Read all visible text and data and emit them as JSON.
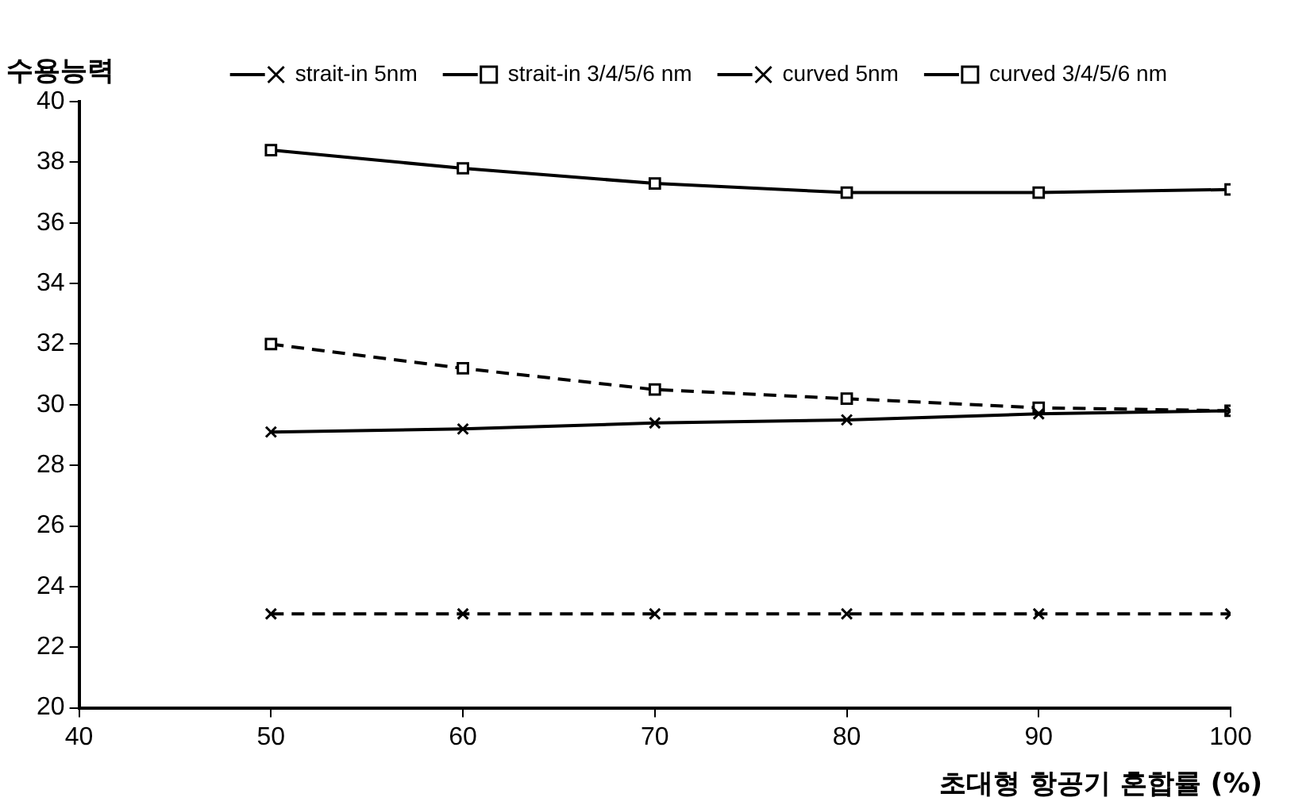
{
  "chart_data": {
    "type": "line",
    "xlabel": "초대형 항공기 혼합률 (%)",
    "ylabel": "수용능력",
    "x": [
      50,
      60,
      70,
      80,
      90,
      100
    ],
    "xlim": [
      40,
      100
    ],
    "xticks": [
      40,
      50,
      60,
      70,
      80,
      90,
      100
    ],
    "ylim": [
      20,
      40
    ],
    "yticks": [
      20,
      22,
      24,
      26,
      28,
      30,
      32,
      34,
      36,
      38,
      40
    ],
    "grid": false,
    "legend": "top",
    "series": [
      {
        "name": "strait-in 5nm",
        "color": "#000000",
        "marker": "cross",
        "line_style": "solid",
        "values": [
          29.1,
          29.2,
          29.4,
          29.5,
          29.7,
          29.8
        ]
      },
      {
        "name": "strait-in 3/4/5/6 nm",
        "color": "#000000",
        "marker": "square",
        "line_style": "solid",
        "values": [
          38.4,
          37.8,
          37.3,
          37.0,
          37.0,
          37.1
        ]
      },
      {
        "name": "curved 5nm",
        "color": "#000000",
        "marker": "cross",
        "line_style": "dashed",
        "values": [
          23.1,
          23.1,
          23.1,
          23.1,
          23.1,
          23.1
        ]
      },
      {
        "name": "curved 3/4/5/6 nm",
        "color": "#000000",
        "marker": "square",
        "line_style": "dashed",
        "values": [
          32.0,
          31.2,
          30.5,
          30.2,
          29.9,
          29.8
        ]
      }
    ]
  }
}
